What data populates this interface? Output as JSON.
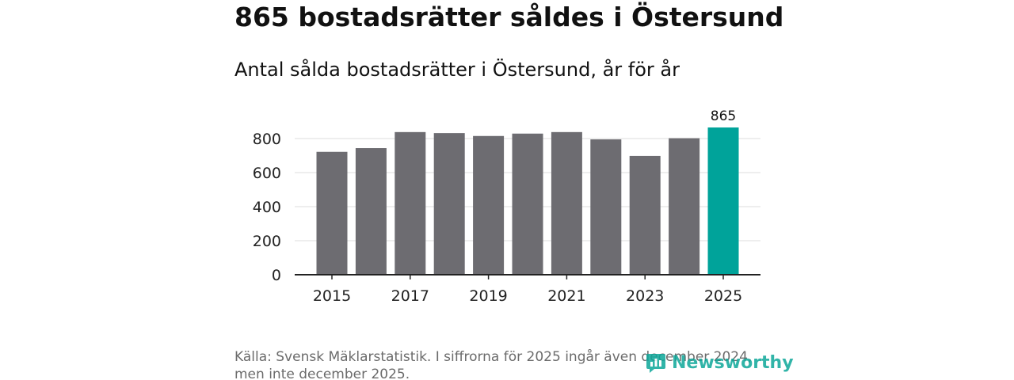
{
  "header": {
    "title": "865 bostadsrätter såldes i Östersund"
  },
  "chart_data": {
    "type": "bar",
    "title": "865 bostadsrätter såldes i Östersund",
    "subtitle": "Antal sålda bostadsrätter i Östersund, år för år",
    "xlabel": "",
    "ylabel": "",
    "categories": [
      "2015",
      "2016",
      "2017",
      "2018",
      "2019",
      "2020",
      "2021",
      "2022",
      "2023",
      "2024",
      "2025"
    ],
    "values": [
      722,
      744,
      838,
      832,
      815,
      829,
      838,
      795,
      698,
      802,
      865
    ],
    "ylim": [
      0,
      900
    ],
    "yticks": [
      0,
      200,
      400,
      600,
      800
    ],
    "yticks_labels": [
      "0",
      "200",
      "400",
      "600",
      "800"
    ],
    "xtick_labels": [
      "2015",
      "2017",
      "2019",
      "2021",
      "2023",
      "2025"
    ],
    "highlight_index": 10,
    "highlight_label": "865",
    "bar_color": "#6d6c71",
    "highlight_color": "#00a39a",
    "grid": true
  },
  "footer": {
    "source_line1": "Källa: Svensk Mäklarstatistik. I siffrorna för 2025 ingår även december 2024,",
    "source_line2": "men inte december 2025.",
    "brand": "Newsworthy",
    "brand_color": "#0ea79a"
  }
}
